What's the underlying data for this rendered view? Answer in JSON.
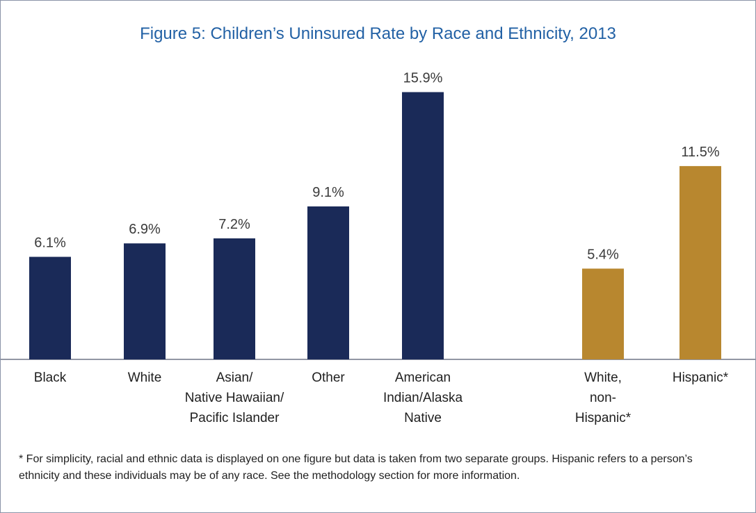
{
  "chart_data": {
    "type": "bar",
    "title": "Figure 5: Children’s Uninsured Rate by Race and Ethnicity, 2013",
    "categories": [
      [
        "Black"
      ],
      [
        "White"
      ],
      [
        "Asian/",
        "Native Hawaiian/",
        "Pacific Islander"
      ],
      [
        "Other"
      ],
      [
        "American",
        "Indian/Alaska",
        "Native"
      ],
      [
        "White,",
        "non-",
        "Hispanic*"
      ],
      [
        "Hispanic*"
      ]
    ],
    "values": [
      6.1,
      6.9,
      7.2,
      9.1,
      15.9,
      5.4,
      11.5
    ],
    "value_labels": [
      "6.1%",
      "6.9%",
      "7.2%",
      "9.1%",
      "15.9%",
      "5.4%",
      "11.5%"
    ],
    "groups": [
      "race",
      "race",
      "race",
      "race",
      "race",
      "ethnicity",
      "ethnicity"
    ],
    "ylim": [
      0,
      16.5
    ],
    "grid": false,
    "colors": {
      "race": "#1a2a58",
      "ethnicity": "#b8872f",
      "title": "#2261a5"
    }
  },
  "footnote": "* For simplicity, racial and ethnic data is displayed on one figure but data is taken from two separate groups. Hispanic refers to a person’s ethnicity and these individuals may be of any race. See the methodology section for more information."
}
